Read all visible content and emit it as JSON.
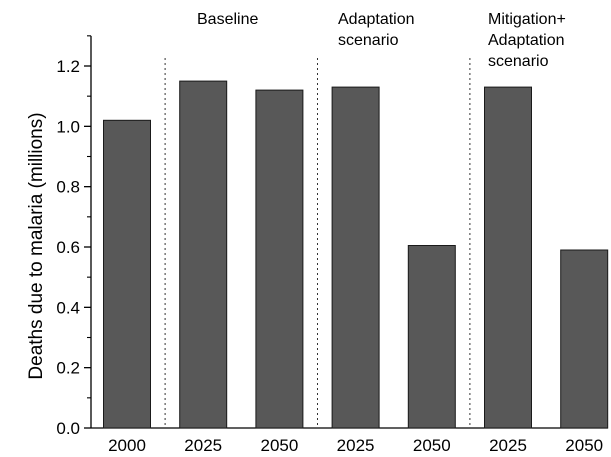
{
  "chart_data": {
    "type": "bar",
    "categories": [
      "2000",
      "2025",
      "2050",
      "2025",
      "2050",
      "2025",
      "2050"
    ],
    "values": [
      1.02,
      1.15,
      1.12,
      1.13,
      0.605,
      1.13,
      0.59
    ],
    "title": "",
    "xlabel": "",
    "ylabel": "Deaths due to malaria (millions)",
    "ylim": [
      0,
      1.3
    ],
    "yticks": [
      "0.0",
      "0.2",
      "0.4",
      "0.6",
      "0.8",
      "1.0",
      "1.2"
    ],
    "group_labels": [
      [
        "Baseline"
      ],
      [
        "Adaptation",
        "scenario"
      ],
      [
        "Mitigation+",
        "Adaptation",
        "scenario"
      ]
    ],
    "bar_color": "#585858",
    "grid": false,
    "legend": "none"
  }
}
